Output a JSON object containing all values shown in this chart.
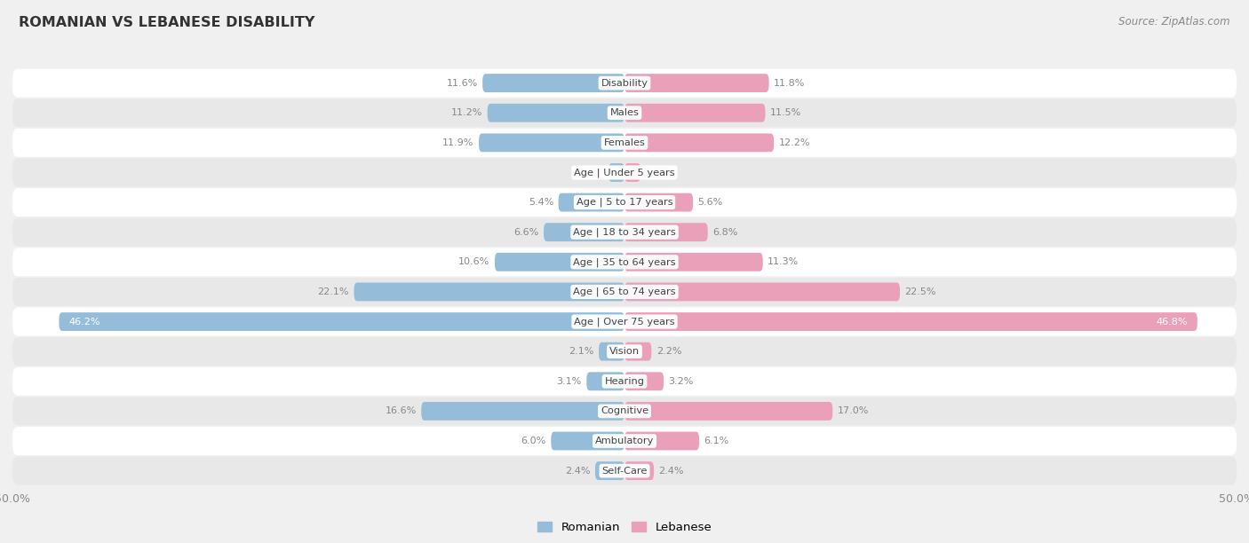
{
  "title": "ROMANIAN VS LEBANESE DISABILITY",
  "source": "Source: ZipAtlas.com",
  "categories": [
    "Disability",
    "Males",
    "Females",
    "Age | Under 5 years",
    "Age | 5 to 17 years",
    "Age | 18 to 34 years",
    "Age | 35 to 64 years",
    "Age | 65 to 74 years",
    "Age | Over 75 years",
    "Vision",
    "Hearing",
    "Cognitive",
    "Ambulatory",
    "Self-Care"
  ],
  "romanian": [
    11.6,
    11.2,
    11.9,
    1.3,
    5.4,
    6.6,
    10.6,
    22.1,
    46.2,
    2.1,
    3.1,
    16.6,
    6.0,
    2.4
  ],
  "lebanese": [
    11.8,
    11.5,
    12.2,
    1.3,
    5.6,
    6.8,
    11.3,
    22.5,
    46.8,
    2.2,
    3.2,
    17.0,
    6.1,
    2.4
  ],
  "romanian_color": "#95bcd8",
  "lebanese_color": "#e9a0b8",
  "lebanese_color_dark": "#d9607a",
  "romanian_color_dark": "#4a90c0",
  "bar_height": 0.62,
  "max_val": 50.0,
  "background_color": "#f0f0f0",
  "row_color_light": "#ffffff",
  "row_color_dark": "#e8e8e8",
  "value_color_outside": "#888888",
  "value_color_inside": "#ffffff"
}
